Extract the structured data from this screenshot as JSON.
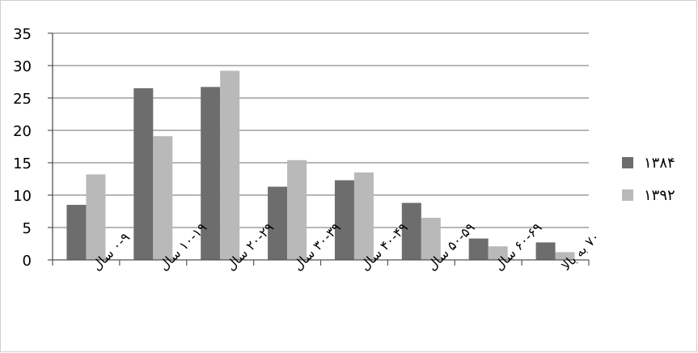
{
  "chart_data": {
    "type": "bar",
    "title": "",
    "xlabel": "",
    "ylabel": "",
    "categories": [
      "۰-۹ سال",
      "۱۰-۱۹ سال",
      "۲۰-۲۹ سال",
      "۳۰-۳۹ سال",
      "۴۰-۴۹ سال",
      "۵۰-۵۹ سال",
      "۶۰-۶۹ سال",
      "۷۰ به بالا"
    ],
    "series": [
      {
        "name": "۱۳۸۴",
        "color": "#6d6d6d",
        "values": [
          8.5,
          26.5,
          26.7,
          11.3,
          12.3,
          8.8,
          3.3,
          2.7
        ]
      },
      {
        "name": "۱۳۹۲",
        "color": "#b9b9b9",
        "values": [
          13.2,
          19.1,
          29.2,
          15.4,
          13.5,
          6.5,
          2.1,
          1.2
        ]
      }
    ],
    "ylim": [
      0,
      35
    ],
    "yticks": [
      0,
      5,
      10,
      15,
      20,
      25,
      30,
      35
    ],
    "grid": true,
    "legend": "right"
  }
}
